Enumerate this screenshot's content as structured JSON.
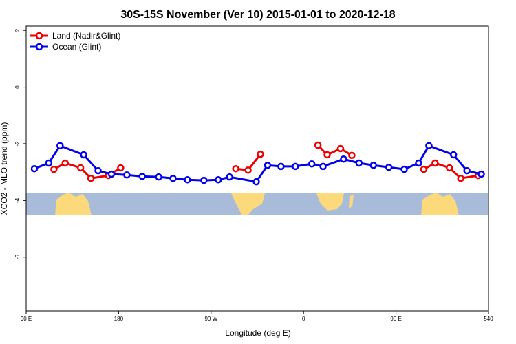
{
  "chart_data": {
    "type": "line",
    "title": "30S-15S November (Ver 10)   2015-01-01 to 2020-12-18",
    "x_label": "Longitude (deg E)",
    "y_label": "XCO2 - MLO trend (ppm)",
    "xlim": [
      90,
      540
    ],
    "ylim": [
      -7.9,
      2.15
    ],
    "xticks": [
      {
        "value": 90,
        "label": "90 E"
      },
      180,
      {
        "value": 270,
        "label": "90 W"
      },
      {
        "value": 360,
        "label": "0"
      },
      {
        "value": 450,
        "label": "90 E"
      },
      540
    ],
    "yticks": [
      2,
      0,
      -2,
      -4,
      -6
    ],
    "legend": "top-left",
    "series": [
      {
        "name": "Land (Nadir&Glint)",
        "color": "#ee0000",
        "x": [
          117,
          128,
          143,
          153,
          170,
          182,
          null,
          294,
          306,
          318,
          null,
          374,
          383,
          396,
          407,
          null,
          477,
          488,
          502,
          513,
          530
        ],
        "values": [
          -2.9,
          -2.68,
          -2.85,
          -3.22,
          -3.12,
          -2.85,
          null,
          -2.88,
          -2.93,
          -2.37,
          null,
          -2.05,
          -2.39,
          -2.17,
          -2.41,
          null,
          -2.9,
          -2.68,
          -2.85,
          -3.22,
          -3.12
        ]
      },
      {
        "name": "Ocean (Glint)",
        "color": "#0000ee",
        "x": [
          98,
          112,
          123,
          146,
          160,
          173,
          188,
          203,
          219,
          233,
          247,
          263,
          277,
          288,
          314,
          325,
          338,
          352,
          368,
          379,
          399,
          414,
          428,
          443,
          458,
          472,
          482,
          506,
          519,
          533
        ],
        "values": [
          -2.88,
          -2.68,
          -2.07,
          -2.39,
          -2.95,
          -3.07,
          -3.1,
          -3.15,
          -3.17,
          -3.22,
          -3.27,
          -3.29,
          -3.27,
          -3.17,
          -3.34,
          -2.76,
          -2.8,
          -2.8,
          -2.71,
          -2.8,
          -2.54,
          -2.68,
          -2.76,
          -2.83,
          -2.9,
          -2.68,
          -2.07,
          -2.39,
          -2.95,
          -3.07
        ]
      }
    ]
  }
}
